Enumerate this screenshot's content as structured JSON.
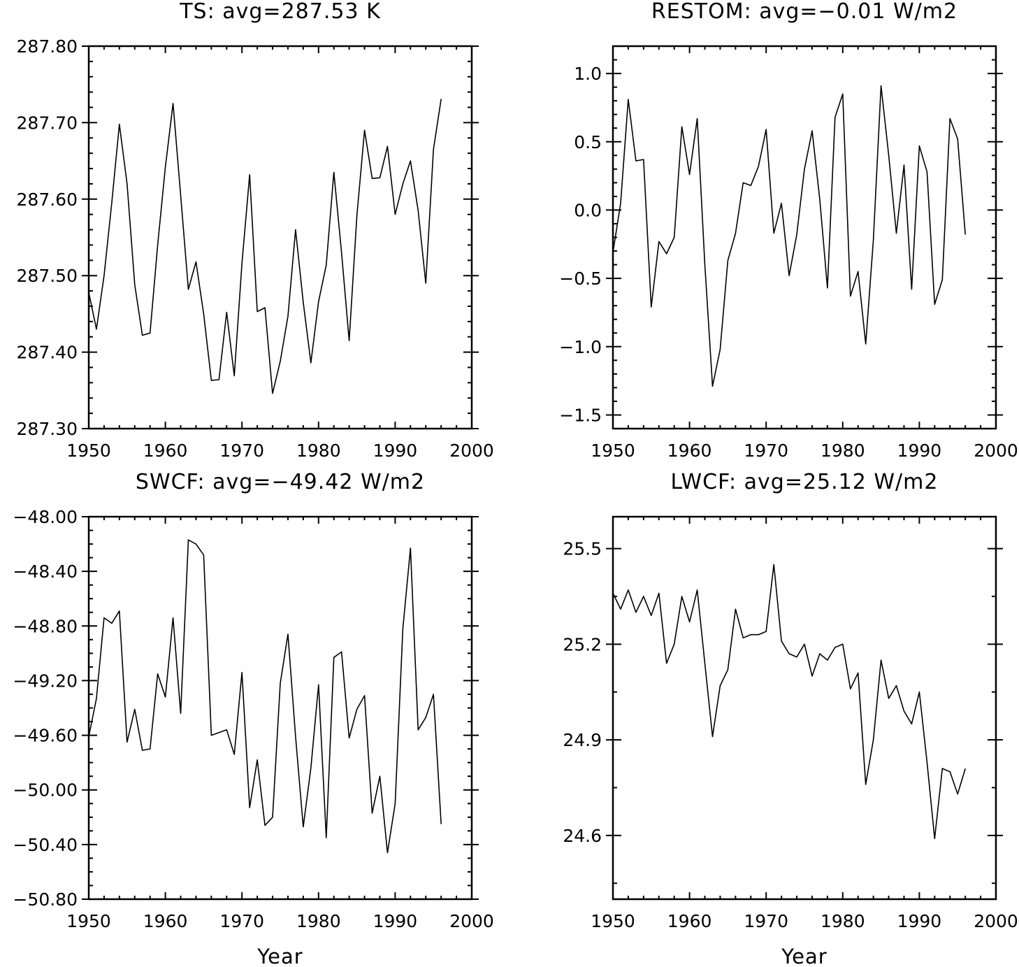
{
  "chart_data": [
    {
      "type": "line",
      "title": "TS: avg=287.53 K",
      "xlabel": "",
      "ylabel": "",
      "xlim": [
        1950,
        2000
      ],
      "ylim": [
        287.3,
        287.8
      ],
      "xticks": [
        "1950",
        "1960",
        "1970",
        "1980",
        "1990",
        "2000"
      ],
      "yticks": [
        "287.30",
        "287.40",
        "287.50",
        "287.60",
        "287.70",
        "287.80"
      ],
      "grid": false,
      "x": [
        1950,
        1951,
        1952,
        1953,
        1954,
        1955,
        1956,
        1957,
        1958,
        1959,
        1960,
        1961,
        1962,
        1963,
        1964,
        1965,
        1966,
        1967,
        1968,
        1969,
        1970,
        1971,
        1972,
        1973,
        1974,
        1975,
        1976,
        1977,
        1978,
        1979,
        1980,
        1981,
        1982,
        1983,
        1984,
        1985,
        1986,
        1987,
        1988,
        1989,
        1990,
        1991,
        1992,
        1993,
        1994,
        1995,
        1996
      ],
      "series": [
        {
          "values": [
            287.478,
            287.43,
            287.5,
            287.595,
            287.698,
            287.62,
            287.488,
            287.422,
            287.425,
            287.54,
            287.642,
            287.725,
            287.605,
            287.482,
            287.518,
            287.45,
            287.363,
            287.364,
            287.452,
            287.369,
            287.516,
            287.632,
            287.453,
            287.458,
            287.346,
            287.388,
            287.447,
            287.56,
            287.465,
            287.386,
            287.466,
            287.514,
            287.635,
            287.53,
            287.415,
            287.578,
            287.69,
            287.627,
            287.628,
            287.669,
            287.58,
            287.62,
            287.65,
            287.585,
            287.49,
            287.665,
            287.731
          ]
        }
      ]
    },
    {
      "type": "line",
      "title": "RESTOM: avg=−0.01 W/m2",
      "xlabel": "",
      "ylabel": "",
      "xlim": [
        1950,
        2000
      ],
      "ylim": [
        -1.6,
        1.2
      ],
      "xticks": [
        "1950",
        "1960",
        "1970",
        "1980",
        "1990",
        "2000"
      ],
      "yticks": [
        "−1.5",
        "−1.0",
        "−0.5",
        "0.0",
        "0.5",
        "1.0"
      ],
      "grid": false,
      "x": [
        1950,
        1951,
        1952,
        1953,
        1954,
        1955,
        1956,
        1957,
        1958,
        1959,
        1960,
        1961,
        1962,
        1963,
        1964,
        1965,
        1966,
        1967,
        1968,
        1969,
        1970,
        1971,
        1972,
        1973,
        1974,
        1975,
        1976,
        1977,
        1978,
        1979,
        1980,
        1981,
        1982,
        1983,
        1984,
        1985,
        1986,
        1987,
        1988,
        1989,
        1990,
        1991,
        1992,
        1993,
        1994,
        1995,
        1996
      ],
      "series": [
        {
          "values": [
            -0.31,
            0.05,
            0.81,
            0.36,
            0.37,
            -0.71,
            -0.23,
            -0.32,
            -0.2,
            0.61,
            0.26,
            0.67,
            -0.4,
            -1.29,
            -1.02,
            -0.37,
            -0.17,
            0.2,
            0.18,
            0.32,
            0.59,
            -0.17,
            0.05,
            -0.48,
            -0.18,
            0.3,
            0.58,
            0.08,
            -0.57,
            0.68,
            0.85,
            -0.63,
            -0.45,
            -0.98,
            -0.22,
            0.91,
            0.4,
            -0.17,
            0.33,
            -0.58,
            0.47,
            0.28,
            -0.69,
            -0.51,
            0.67,
            0.52,
            -0.18
          ]
        }
      ]
    },
    {
      "type": "line",
      "title": "SWCF: avg=−49.42 W/m2",
      "xlabel": "Year",
      "ylabel": "",
      "xlim": [
        1950,
        2000
      ],
      "ylim": [
        -50.8,
        -48.0
      ],
      "xticks": [
        "1950",
        "1960",
        "1970",
        "1980",
        "1990",
        "2000"
      ],
      "yticks": [
        "−50.80",
        "−50.40",
        "−50.00",
        "−49.60",
        "−49.20",
        "−48.80",
        "−48.40",
        "−48.00"
      ],
      "grid": false,
      "x": [
        1950,
        1951,
        1952,
        1953,
        1954,
        1955,
        1956,
        1957,
        1958,
        1959,
        1960,
        1961,
        1962,
        1963,
        1964,
        1965,
        1966,
        1967,
        1968,
        1969,
        1970,
        1971,
        1972,
        1973,
        1974,
        1975,
        1976,
        1977,
        1978,
        1979,
        1980,
        1981,
        1982,
        1983,
        1984,
        1985,
        1986,
        1987,
        1988,
        1989,
        1990,
        1991,
        1992,
        1993,
        1994,
        1995,
        1996
      ],
      "series": [
        {
          "values": [
            -49.61,
            -49.33,
            -48.74,
            -48.78,
            -48.69,
            -49.65,
            -49.41,
            -49.71,
            -49.7,
            -49.15,
            -49.32,
            -48.74,
            -49.44,
            -48.17,
            -48.2,
            -48.28,
            -49.6,
            -49.58,
            -49.56,
            -49.74,
            -49.14,
            -50.13,
            -49.78,
            -50.26,
            -50.2,
            -49.22,
            -48.86,
            -49.61,
            -50.27,
            -49.84,
            -49.23,
            -50.35,
            -49.03,
            -48.99,
            -49.62,
            -49.41,
            -49.31,
            -50.17,
            -49.9,
            -50.46,
            -50.1,
            -48.82,
            -48.23,
            -49.56,
            -49.47,
            -49.3,
            -50.25
          ]
        }
      ]
    },
    {
      "type": "line",
      "title": "LWCF: avg=25.12 W/m2",
      "xlabel": "Year",
      "ylabel": "",
      "xlim": [
        1950,
        2000
      ],
      "ylim": [
        24.4,
        25.6
      ],
      "xticks": [
        "1950",
        "1960",
        "1970",
        "1980",
        "1990",
        "2000"
      ],
      "yticks": [
        "24.6",
        "24.9",
        "25.2",
        "25.5"
      ],
      "grid": false,
      "x": [
        1950,
        1951,
        1952,
        1953,
        1954,
        1955,
        1956,
        1957,
        1958,
        1959,
        1960,
        1961,
        1962,
        1963,
        1964,
        1965,
        1966,
        1967,
        1968,
        1969,
        1970,
        1971,
        1972,
        1973,
        1974,
        1975,
        1976,
        1977,
        1978,
        1979,
        1980,
        1981,
        1982,
        1983,
        1984,
        1985,
        1986,
        1987,
        1988,
        1989,
        1990,
        1991,
        1992,
        1993,
        1994,
        1995,
        1996
      ],
      "series": [
        {
          "values": [
            25.36,
            25.31,
            25.37,
            25.3,
            25.35,
            25.29,
            25.36,
            25.14,
            25.2,
            25.35,
            25.27,
            25.37,
            25.14,
            24.91,
            25.07,
            25.12,
            25.31,
            25.22,
            25.23,
            25.23,
            25.24,
            25.45,
            25.21,
            25.17,
            25.16,
            25.2,
            25.1,
            25.17,
            25.15,
            25.19,
            25.2,
            25.06,
            25.11,
            24.76,
            24.9,
            25.15,
            25.03,
            25.07,
            24.99,
            24.95,
            25.05,
            24.83,
            24.59,
            24.81,
            24.8,
            24.73,
            24.81
          ]
        }
      ]
    }
  ]
}
